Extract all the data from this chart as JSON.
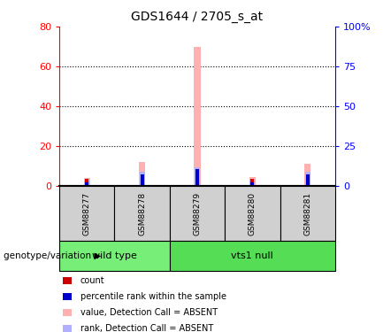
{
  "title": "GDS1644 / 2705_s_at",
  "samples": [
    "GSM88277",
    "GSM88278",
    "GSM88279",
    "GSM88280",
    "GSM88281"
  ],
  "value_bars": [
    4.0,
    12.0,
    70.0,
    4.5,
    11.0
  ],
  "rank_bars": [
    2.5,
    7.0,
    9.5,
    2.5,
    7.0
  ],
  "count_bars": [
    3.5,
    3.5,
    3.5,
    3.5,
    3.5
  ],
  "percentile_bars": [
    2.0,
    6.0,
    8.5,
    2.0,
    6.0
  ],
  "ylim_left": [
    0,
    80
  ],
  "ylim_right": [
    0,
    100
  ],
  "yticks_left": [
    0,
    20,
    40,
    60,
    80
  ],
  "yticks_right": [
    0,
    25,
    50,
    75,
    100
  ],
  "ytick_labels_right": [
    "0",
    "25",
    "50",
    "75",
    "100%"
  ],
  "color_value": "#ffb0b0",
  "color_rank": "#b0b0ff",
  "color_count": "#cc0000",
  "color_percentile": "#0000cc",
  "wild_type_color": "#77ee77",
  "vts1_null_color": "#55dd55",
  "sample_box_color": "#d0d0d0",
  "legend_items": [
    {
      "color": "#cc0000",
      "label": "count"
    },
    {
      "color": "#0000cc",
      "label": "percentile rank within the sample"
    },
    {
      "color": "#ffb0b0",
      "label": "value, Detection Call = ABSENT"
    },
    {
      "color": "#b0b0ff",
      "label": "rank, Detection Call = ABSENT"
    }
  ]
}
